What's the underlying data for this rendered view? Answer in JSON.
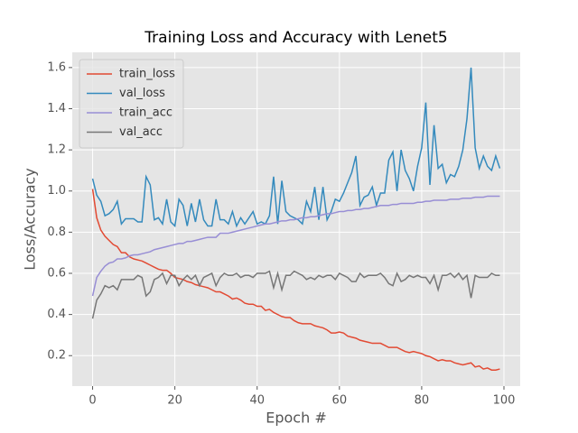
{
  "chart_data": {
    "type": "line",
    "title": "Training Loss and Accuracy with Lenet5",
    "x_label": "Epoch #",
    "y_label": "Loss/Accuracy",
    "x": [
      0,
      1,
      2,
      3,
      4,
      5,
      6,
      7,
      8,
      9,
      10,
      11,
      12,
      13,
      14,
      15,
      16,
      17,
      18,
      19,
      20,
      21,
      22,
      23,
      24,
      25,
      26,
      27,
      28,
      29,
      30,
      31,
      32,
      33,
      34,
      35,
      36,
      37,
      38,
      39,
      40,
      41,
      42,
      43,
      44,
      45,
      46,
      47,
      48,
      49,
      50,
      51,
      52,
      53,
      54,
      55,
      56,
      57,
      58,
      59,
      60,
      61,
      62,
      63,
      64,
      65,
      66,
      67,
      68,
      69,
      70,
      71,
      72,
      73,
      74,
      75,
      76,
      77,
      78,
      79,
      80,
      81,
      82,
      83,
      84,
      85,
      86,
      87,
      88,
      89,
      90,
      91,
      92,
      93,
      94,
      95,
      96,
      97,
      98,
      99
    ],
    "series": [
      {
        "name": "train_loss",
        "color": "#E24A33",
        "values": [
          1.01,
          0.87,
          0.81,
          0.78,
          0.76,
          0.74,
          0.73,
          0.7,
          0.7,
          0.68,
          0.67,
          0.665,
          0.66,
          0.65,
          0.64,
          0.63,
          0.62,
          0.615,
          0.615,
          0.6,
          0.58,
          0.575,
          0.57,
          0.56,
          0.555,
          0.545,
          0.54,
          0.535,
          0.53,
          0.52,
          0.51,
          0.51,
          0.5,
          0.49,
          0.475,
          0.48,
          0.47,
          0.455,
          0.45,
          0.45,
          0.44,
          0.44,
          0.42,
          0.425,
          0.41,
          0.4,
          0.39,
          0.385,
          0.385,
          0.37,
          0.36,
          0.355,
          0.355,
          0.355,
          0.345,
          0.34,
          0.335,
          0.325,
          0.31,
          0.31,
          0.315,
          0.31,
          0.295,
          0.29,
          0.285,
          0.275,
          0.27,
          0.265,
          0.26,
          0.26,
          0.26,
          0.25,
          0.24,
          0.24,
          0.24,
          0.23,
          0.22,
          0.215,
          0.22,
          0.215,
          0.21,
          0.2,
          0.195,
          0.185,
          0.175,
          0.18,
          0.175,
          0.175,
          0.165,
          0.16,
          0.155,
          0.16,
          0.165,
          0.145,
          0.15,
          0.135,
          0.14,
          0.13,
          0.13,
          0.135
        ]
      },
      {
        "name": "val_loss",
        "color": "#348ABD",
        "values": [
          1.06,
          0.98,
          0.95,
          0.88,
          0.89,
          0.91,
          0.95,
          0.84,
          0.865,
          0.865,
          0.865,
          0.85,
          0.85,
          1.07,
          1.03,
          0.86,
          0.87,
          0.84,
          0.96,
          0.85,
          0.83,
          0.96,
          0.93,
          0.83,
          0.94,
          0.85,
          0.96,
          0.86,
          0.83,
          0.83,
          0.96,
          0.86,
          0.86,
          0.84,
          0.9,
          0.83,
          0.87,
          0.84,
          0.87,
          0.9,
          0.84,
          0.85,
          0.84,
          0.88,
          1.07,
          0.84,
          1.05,
          0.9,
          0.88,
          0.87,
          0.86,
          0.84,
          0.95,
          0.9,
          1.02,
          0.86,
          1.02,
          0.86,
          0.9,
          0.96,
          0.95,
          0.99,
          1.04,
          1.09,
          1.17,
          0.93,
          0.97,
          0.98,
          1.02,
          0.93,
          0.99,
          0.99,
          1.15,
          1.19,
          1.0,
          1.2,
          1.1,
          1.06,
          1.0,
          1.12,
          1.21,
          1.43,
          1.03,
          1.32,
          1.11,
          1.13,
          1.04,
          1.08,
          1.07,
          1.12,
          1.2,
          1.35,
          1.6,
          1.21,
          1.11,
          1.17,
          1.12,
          1.1,
          1.17,
          1.11
        ]
      },
      {
        "name": "train_acc",
        "color": "#988ED5",
        "values": [
          0.49,
          0.58,
          0.61,
          0.635,
          0.65,
          0.655,
          0.67,
          0.67,
          0.675,
          0.685,
          0.69,
          0.69,
          0.695,
          0.7,
          0.705,
          0.715,
          0.72,
          0.725,
          0.73,
          0.735,
          0.74,
          0.745,
          0.745,
          0.755,
          0.755,
          0.76,
          0.765,
          0.77,
          0.775,
          0.775,
          0.775,
          0.795,
          0.795,
          0.795,
          0.8,
          0.805,
          0.81,
          0.815,
          0.82,
          0.825,
          0.83,
          0.835,
          0.84,
          0.84,
          0.845,
          0.85,
          0.855,
          0.855,
          0.86,
          0.86,
          0.865,
          0.87,
          0.87,
          0.875,
          0.875,
          0.88,
          0.885,
          0.89,
          0.89,
          0.895,
          0.9,
          0.9,
          0.905,
          0.905,
          0.91,
          0.91,
          0.915,
          0.915,
          0.92,
          0.925,
          0.93,
          0.93,
          0.93,
          0.935,
          0.935,
          0.94,
          0.94,
          0.94,
          0.94,
          0.945,
          0.945,
          0.95,
          0.95,
          0.955,
          0.955,
          0.955,
          0.955,
          0.96,
          0.96,
          0.96,
          0.965,
          0.965,
          0.965,
          0.97,
          0.97,
          0.97,
          0.975,
          0.975,
          0.975,
          0.975
        ]
      },
      {
        "name": "val_acc",
        "color": "#777777",
        "values": [
          0.38,
          0.47,
          0.5,
          0.54,
          0.53,
          0.54,
          0.52,
          0.57,
          0.57,
          0.57,
          0.57,
          0.59,
          0.58,
          0.49,
          0.51,
          0.57,
          0.58,
          0.6,
          0.55,
          0.59,
          0.59,
          0.54,
          0.57,
          0.59,
          0.57,
          0.59,
          0.54,
          0.58,
          0.59,
          0.6,
          0.54,
          0.58,
          0.6,
          0.59,
          0.59,
          0.6,
          0.58,
          0.59,
          0.59,
          0.58,
          0.6,
          0.6,
          0.6,
          0.61,
          0.53,
          0.6,
          0.52,
          0.59,
          0.59,
          0.61,
          0.6,
          0.59,
          0.57,
          0.58,
          0.57,
          0.59,
          0.58,
          0.59,
          0.59,
          0.57,
          0.6,
          0.59,
          0.58,
          0.56,
          0.56,
          0.6,
          0.58,
          0.59,
          0.59,
          0.59,
          0.6,
          0.58,
          0.55,
          0.54,
          0.6,
          0.56,
          0.57,
          0.59,
          0.58,
          0.59,
          0.58,
          0.58,
          0.55,
          0.59,
          0.52,
          0.59,
          0.59,
          0.6,
          0.58,
          0.6,
          0.57,
          0.59,
          0.48,
          0.59,
          0.58,
          0.58,
          0.58,
          0.6,
          0.59,
          0.59
        ]
      }
    ],
    "xlim": [
      -4.95,
      103.95
    ],
    "ylim": [
      0.052,
      1.674
    ],
    "xticks": [
      0,
      20,
      40,
      60,
      80,
      100
    ],
    "yticks": [
      0.2,
      0.4,
      0.6,
      0.8,
      {
        "value": 1,
        "label": "1.0"
      },
      1.2,
      1.4,
      1.6
    ],
    "grid": true,
    "legend": "upper left"
  }
}
